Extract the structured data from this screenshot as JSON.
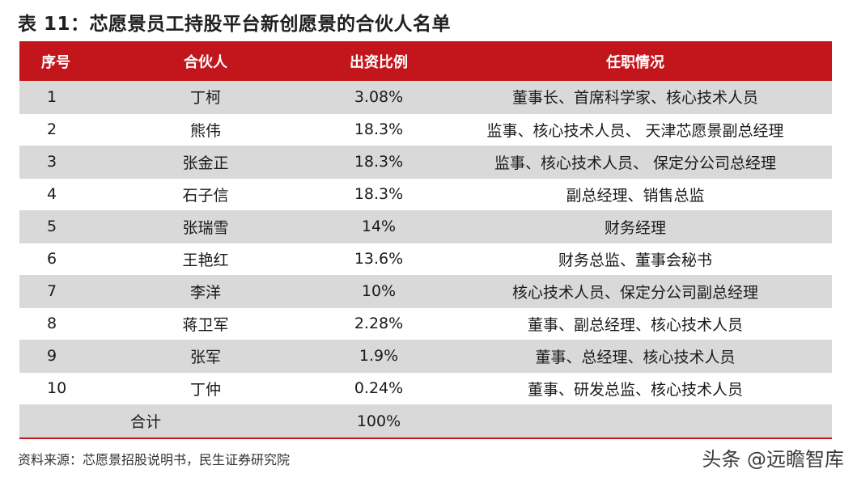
{
  "title": "表 11：芯愿景员工持股平台新创愿景的合伙人名单",
  "table": {
    "headers": {
      "no": "序号",
      "name": "合伙人",
      "ratio": "出资比例",
      "role": "任职情况"
    },
    "rows": [
      {
        "no": "1",
        "name": "丁柯",
        "ratio": "3.08%",
        "role": "董事长、首席科学家、核心技术人员"
      },
      {
        "no": "2",
        "name": "熊伟",
        "ratio": "18.3%",
        "role": "监事、核心技术人员、 天津芯愿景副总经理"
      },
      {
        "no": "3",
        "name": "张金正",
        "ratio": "18.3%",
        "role": "监事、核心技术人员、 保定分公司总经理"
      },
      {
        "no": "4",
        "name": "石子信",
        "ratio": "18.3%",
        "role": "副总经理、销售总监"
      },
      {
        "no": "5",
        "name": "张瑞雪",
        "ratio": "14%",
        "role": "财务经理"
      },
      {
        "no": "6",
        "name": "王艳红",
        "ratio": "13.6%",
        "role": "财务总监、董事会秘书"
      },
      {
        "no": "7",
        "name": "李洋",
        "ratio": "10%",
        "role": "核心技术人员、保定分公司副总经理"
      },
      {
        "no": "8",
        "name": "蒋卫军",
        "ratio": "2.28%",
        "role": "董事、副总经理、核心技术人员"
      },
      {
        "no": "9",
        "name": "张军",
        "ratio": "1.9%",
        "role": "董事、总经理、核心技术人员"
      },
      {
        "no": "10",
        "name": "丁仲",
        "ratio": "0.24%",
        "role": "董事、研发总监、核心技术人员"
      }
    ],
    "total": {
      "label": "合计",
      "ratio": "100%"
    }
  },
  "source": "资料来源：芯愿景招股说明书，民生证券研究院",
  "watermark": "头条 @远瞻智库",
  "colors": {
    "header_bg": "#c3161c",
    "stripe_bg": "#d9d9d9"
  }
}
